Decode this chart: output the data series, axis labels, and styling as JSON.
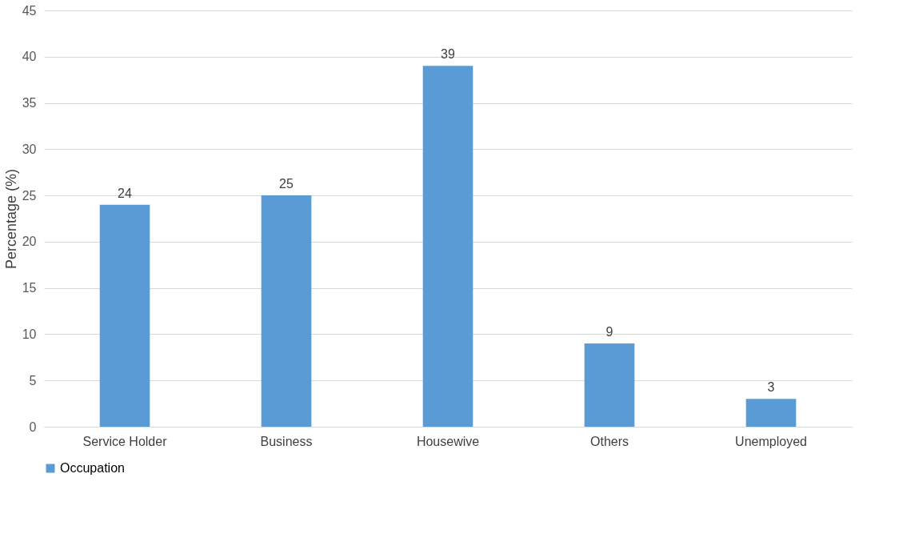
{
  "chart_data": {
    "type": "bar",
    "ylabel": "Percentage (%)",
    "categories": [
      "Service Holder",
      "Business",
      "Housewive",
      "Others",
      "Unemployed"
    ],
    "series": [
      {
        "name": "Occupation",
        "color": "#5b9bd5",
        "values": [
          24,
          25,
          39,
          9,
          3
        ]
      }
    ],
    "ylim": [
      0,
      45
    ],
    "yticks": [
      0,
      5,
      10,
      15,
      20,
      25,
      30,
      35,
      40,
      45
    ],
    "grid": "y",
    "legend": "bottom",
    "data_labels": true
  }
}
